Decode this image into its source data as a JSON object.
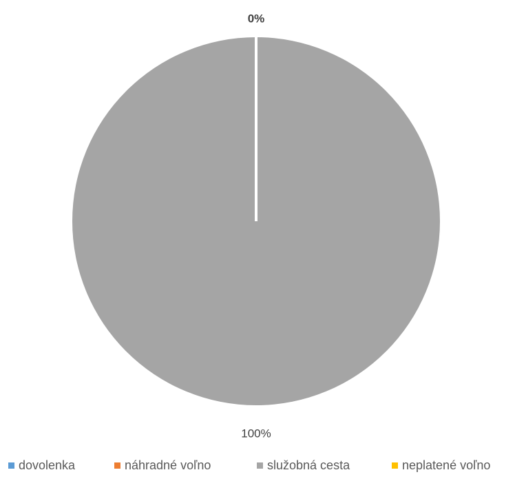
{
  "chart_data": {
    "type": "pie",
    "title": "",
    "legend_position": "bottom",
    "slices": [
      {
        "name": "dovolenka",
        "value": 0,
        "label": "",
        "color": "#5B9BD5"
      },
      {
        "name": "náhradné voľno",
        "value": 0,
        "label": "",
        "color": "#ED7D31"
      },
      {
        "name": "služobná cesta",
        "value": 100,
        "label": "100%",
        "color": "#A5A5A5"
      },
      {
        "name": "neplatené voľno",
        "value": 0,
        "label": "0%",
        "color": "#FFC000"
      }
    ]
  }
}
